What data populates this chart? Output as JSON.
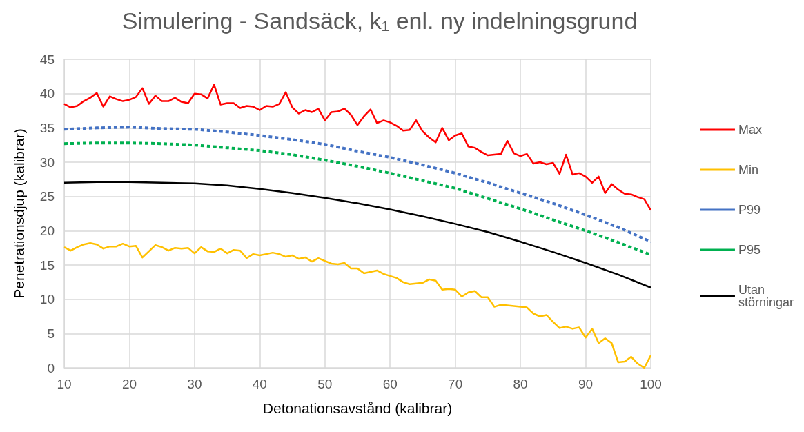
{
  "chart_data": {
    "type": "line",
    "title": "Simulering - Sandsäck, k₁ enl. ny indelningsgrund",
    "xlabel": "Detonationsavstånd (kalibrar)",
    "ylabel": "Penetrationsdjup (kalibrar)",
    "xlim": [
      10,
      100
    ],
    "xticks": [
      10,
      20,
      30,
      40,
      50,
      60,
      70,
      80,
      90,
      100
    ],
    "ylim": [
      0,
      45
    ],
    "yticks": [
      0,
      5,
      10,
      15,
      20,
      25,
      30,
      35,
      40,
      45
    ],
    "grid": true,
    "legend": "right",
    "marker": "none",
    "series": [
      {
        "name": "Max",
        "color": "#ff0000",
        "line_style": "solid",
        "x": [
          10,
          11,
          12,
          13,
          14,
          15,
          16,
          17,
          18,
          19,
          20,
          21,
          22,
          23,
          24,
          25,
          26,
          27,
          28,
          29,
          30,
          31,
          32,
          33,
          34,
          35,
          36,
          37,
          38,
          39,
          40,
          41,
          42,
          43,
          44,
          45,
          46,
          47,
          48,
          49,
          50,
          51,
          52,
          53,
          54,
          55,
          56,
          57,
          58,
          59,
          60,
          61,
          62,
          63,
          64,
          65,
          66,
          67,
          68,
          69,
          70,
          71,
          72,
          73,
          74,
          75,
          76,
          77,
          78,
          79,
          80,
          81,
          82,
          83,
          84,
          85,
          86,
          87,
          88,
          89,
          90,
          91,
          92,
          93,
          94,
          95,
          96,
          97,
          98,
          99,
          100
        ],
        "values": [
          38.5,
          38,
          38.2,
          38.9,
          39.4,
          40.1,
          38.1,
          39.6,
          39.2,
          38.9,
          39.1,
          39.5,
          40.8,
          38.5,
          39.7,
          38.9,
          38.9,
          39.4,
          38.8,
          38.6,
          40,
          39.9,
          39.3,
          41.3,
          38.4,
          38.6,
          38.6,
          37.9,
          38.2,
          38.1,
          37.6,
          38.2,
          38.1,
          38.5,
          40.2,
          38,
          37.1,
          37.6,
          37.3,
          37.8,
          36.1,
          37.3,
          37.4,
          37.8,
          36.9,
          35.4,
          36.7,
          37.7,
          35.7,
          36.1,
          35.8,
          35.3,
          34.6,
          34.7,
          36.1,
          34.5,
          33.6,
          32.9,
          35,
          33.2,
          33.9,
          34.2,
          32.3,
          32.1,
          31.5,
          31,
          31.1,
          31.2,
          33.1,
          31.3,
          30.9,
          31.2,
          29.8,
          30,
          29.7,
          29.9,
          28.3,
          31.1,
          28.2,
          28.4,
          27.9,
          27,
          27.9,
          25.5,
          26.8,
          26,
          25.4,
          25.3,
          24.9,
          24.6,
          23
        ]
      },
      {
        "name": "Min",
        "color": "#ffc000",
        "line_style": "solid",
        "x": [
          10,
          11,
          12,
          13,
          14,
          15,
          16,
          17,
          18,
          19,
          20,
          21,
          22,
          23,
          24,
          25,
          26,
          27,
          28,
          29,
          30,
          31,
          32,
          33,
          34,
          35,
          36,
          37,
          38,
          39,
          40,
          41,
          42,
          43,
          44,
          45,
          46,
          47,
          48,
          49,
          50,
          51,
          52,
          53,
          54,
          55,
          56,
          57,
          58,
          59,
          60,
          61,
          62,
          63,
          64,
          65,
          66,
          67,
          68,
          69,
          70,
          71,
          72,
          73,
          74,
          75,
          76,
          77,
          78,
          79,
          80,
          81,
          82,
          83,
          84,
          85,
          86,
          87,
          88,
          89,
          90,
          91,
          92,
          93,
          94,
          95,
          96,
          97,
          98,
          99,
          100
        ],
        "values": [
          17.6,
          17.1,
          17.6,
          18,
          18.2,
          18,
          17.4,
          17.7,
          17.7,
          18.1,
          17.7,
          17.8,
          16.1,
          17,
          17.9,
          17.6,
          17.1,
          17.5,
          17.4,
          17.5,
          16.7,
          17.6,
          17,
          16.9,
          17.4,
          16.7,
          17.2,
          17.1,
          16,
          16.6,
          16.4,
          16.6,
          16.8,
          16.6,
          16.2,
          16.4,
          15.9,
          16.1,
          15.5,
          16,
          15.6,
          15.2,
          15.1,
          15.3,
          14.5,
          14.5,
          13.8,
          14,
          14.2,
          13.7,
          13.4,
          13.1,
          12.5,
          12.2,
          12.3,
          12.4,
          12.9,
          12.7,
          11.4,
          11.5,
          11.4,
          10.4,
          11,
          11.2,
          10.3,
          10.3,
          8.9,
          9.2,
          9.1,
          9,
          8.9,
          8.8,
          7.9,
          7.5,
          7.7,
          6.7,
          5.8,
          6,
          5.7,
          5.9,
          4.4,
          5.7,
          3.6,
          4.3,
          3.6,
          0.8,
          0.9,
          1.6,
          0.6,
          0,
          1.8
        ]
      },
      {
        "name": "P99",
        "color": "#4472c4",
        "line_style": "dashed",
        "x": [
          10,
          15,
          20,
          25,
          30,
          35,
          40,
          45,
          50,
          55,
          60,
          65,
          70,
          75,
          80,
          85,
          90,
          95,
          100
        ],
        "values": [
          34.8,
          35,
          35.1,
          34.9,
          34.8,
          34.4,
          33.9,
          33.3,
          32.6,
          31.6,
          30.7,
          29.6,
          28.4,
          27,
          25.5,
          24,
          22.3,
          20.5,
          18.4
        ]
      },
      {
        "name": "P95",
        "color": "#00b050",
        "line_style": "dashed",
        "x": [
          10,
          15,
          20,
          25,
          30,
          35,
          40,
          45,
          50,
          55,
          60,
          65,
          70,
          75,
          80,
          85,
          90,
          95,
          100
        ],
        "values": [
          32.7,
          32.8,
          32.8,
          32.7,
          32.5,
          32.1,
          31.7,
          31.1,
          30.3,
          29.4,
          28.4,
          27.3,
          26.2,
          24.7,
          23.2,
          21.6,
          20,
          18.3,
          16.5
        ]
      },
      {
        "name": "Utan störningar",
        "color": "#000000",
        "line_style": "solid",
        "x": [
          10,
          15,
          20,
          25,
          30,
          35,
          40,
          45,
          50,
          55,
          60,
          65,
          70,
          75,
          80,
          85,
          90,
          95,
          100
        ],
        "values": [
          27,
          27.1,
          27.1,
          27,
          26.9,
          26.6,
          26.1,
          25.5,
          24.8,
          24,
          23.1,
          22.1,
          21,
          19.8,
          18.4,
          16.9,
          15.3,
          13.6,
          11.7
        ]
      }
    ]
  }
}
